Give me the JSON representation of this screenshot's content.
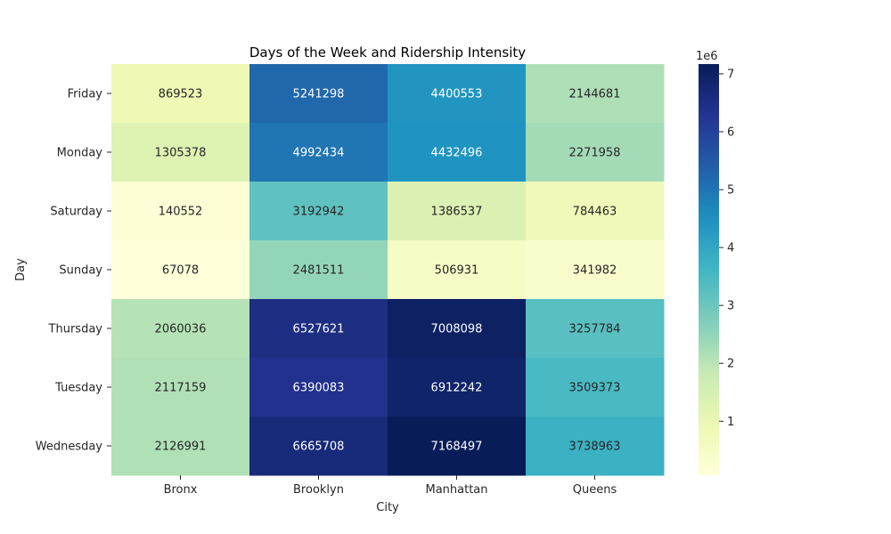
{
  "chart_data": {
    "type": "heatmap",
    "title": "Days of the Week and Ridership Intensity",
    "xlabel": "City",
    "ylabel": "Day",
    "x_categories": [
      "Bronx",
      "Brooklyn",
      "Manhattan",
      "Queens"
    ],
    "y_categories": [
      "Friday",
      "Monday",
      "Saturday",
      "Sunday",
      "Thursday",
      "Tuesday",
      "Wednesday"
    ],
    "values": [
      [
        869523,
        5241298,
        4400553,
        2144681
      ],
      [
        1305378,
        4992434,
        4432496,
        2271958
      ],
      [
        140552,
        3192942,
        1386537,
        784463
      ],
      [
        67078,
        2481511,
        506931,
        341982
      ],
      [
        2060036,
        6527621,
        7008098,
        3257784
      ],
      [
        2117159,
        6390083,
        6912242,
        3509373
      ],
      [
        2126991,
        6665708,
        7168497,
        3738963
      ]
    ],
    "colormap": "YlGnBu",
    "value_range": [
      67078,
      7168497
    ],
    "colorbar": {
      "ticks": [
        1,
        2,
        3,
        4,
        5,
        6,
        7
      ],
      "multiplier_label": "1e6"
    }
  }
}
